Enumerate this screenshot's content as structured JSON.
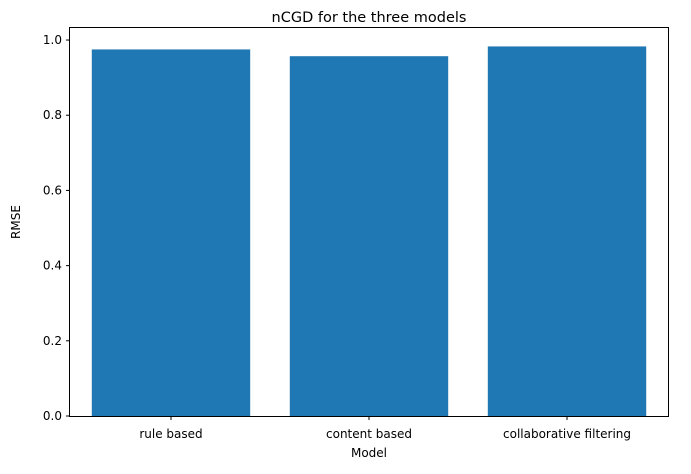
{
  "chart_data": {
    "type": "bar",
    "title": "nCGD for the three models",
    "xlabel": "Model",
    "ylabel": "RMSE",
    "categories": [
      "rule based",
      "content based",
      "collaborative filtering"
    ],
    "values": [
      0.975,
      0.957,
      0.983
    ],
    "ylim": [
      0,
      1.032
    ],
    "yticks": [
      0.0,
      0.2,
      0.4,
      0.6,
      0.8,
      1.0
    ],
    "ytick_labels": [
      "0.0",
      "0.2",
      "0.4",
      "0.6",
      "0.8",
      "1.0"
    ],
    "bar_color": "#1f77b4",
    "grid": false,
    "legend": "none"
  }
}
